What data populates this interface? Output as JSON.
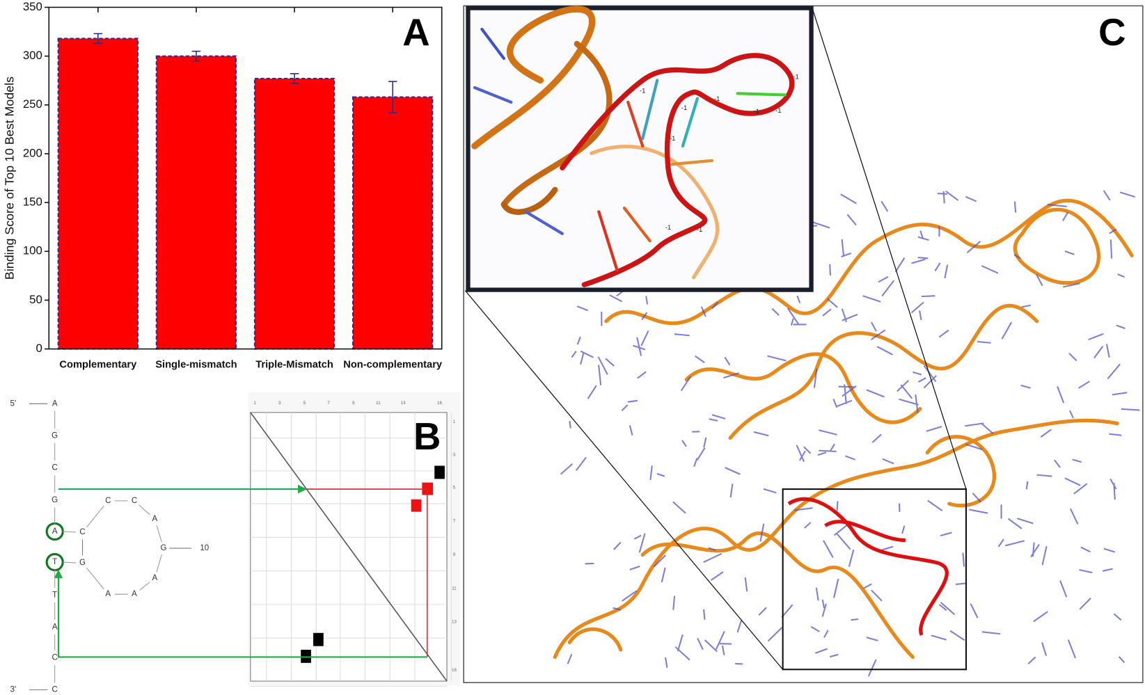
{
  "chart_data": {
    "type": "bar",
    "ylabel": "Binding Score of Top 10 Best Models",
    "categories": [
      "Complementary",
      "Single-mismatch",
      "Triple-Mismatch",
      "Non-complementary"
    ],
    "values": [
      318,
      300,
      277,
      258
    ],
    "errors": [
      5,
      5,
      5,
      16
    ],
    "color": "#ff0000",
    "edge_color": "#2b2b8f",
    "ylim": [
      0,
      350
    ],
    "yticks": [
      0,
      50,
      100,
      150,
      200,
      250,
      300,
      350
    ]
  },
  "panel_labels": [
    "A",
    "B",
    "C"
  ],
  "panel_b": {
    "five_prime": "5'",
    "three_prime": "3'",
    "stem": [
      "A",
      "G",
      "C",
      "G",
      "A",
      "T",
      "T",
      "A",
      "C",
      "C"
    ],
    "loop": [
      "C",
      "C",
      "C",
      "A",
      "G",
      "A",
      "A",
      "A",
      "G"
    ],
    "position_label": "10",
    "dot_plot_top": [
      "1",
      "3",
      "5",
      "7",
      "9",
      "11",
      "13",
      "16"
    ],
    "dot_plot_right": [
      "1",
      "3",
      "5",
      "7",
      "9",
      "11",
      "13",
      "16"
    ]
  },
  "panel_c": {
    "inset_labels": [
      "-1",
      "-1",
      "-1",
      "-1",
      "-1",
      "-1",
      "-1",
      "-1",
      "-1"
    ]
  }
}
